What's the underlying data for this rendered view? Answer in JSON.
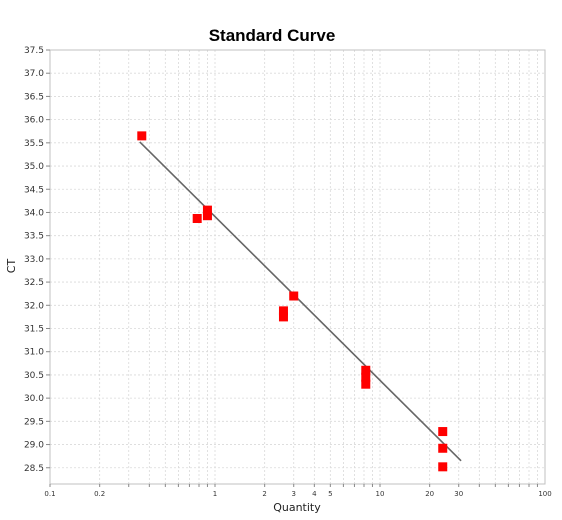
{
  "chart_data": {
    "type": "scatter",
    "title": "Standard Curve",
    "xlabel": "Quantity",
    "ylabel": "CT",
    "x_scale": "log",
    "xlim": [
      0.1,
      100
    ],
    "ylim": [
      28.15,
      37.5
    ],
    "x_ticks": [
      0.1,
      0.2,
      1,
      2,
      3,
      4,
      5,
      10,
      20,
      30,
      100
    ],
    "x_tick_labels": [
      "0.1",
      "0.2",
      "1",
      "2",
      "3",
      "4",
      "5",
      "10",
      "20",
      "30",
      "100"
    ],
    "y_ticks": [
      28.5,
      29.0,
      29.5,
      30.0,
      30.5,
      31.0,
      31.5,
      32.0,
      32.5,
      33.0,
      33.5,
      34.0,
      34.5,
      35.0,
      35.5,
      36.0,
      36.5,
      37.0,
      37.5
    ],
    "y_tick_labels": [
      "28.5",
      "29.0",
      "29.5",
      "30.0",
      "30.5",
      "31.0",
      "31.5",
      "32.0",
      "32.5",
      "33.0",
      "33.5",
      "34.0",
      "34.5",
      "35.0",
      "35.5",
      "36.0",
      "36.5",
      "37.0",
      "37.5"
    ],
    "grid": true,
    "series": [
      {
        "kind": "points",
        "color": "#ff0000",
        "points": [
          {
            "x": 0.36,
            "y": 35.65
          },
          {
            "x": 0.78,
            "y": 33.87
          },
          {
            "x": 0.9,
            "y": 34.05
          },
          {
            "x": 0.9,
            "y": 33.93
          },
          {
            "x": 2.6,
            "y": 31.88
          },
          {
            "x": 2.6,
            "y": 31.75
          },
          {
            "x": 3.0,
            "y": 32.2
          },
          {
            "x": 8.2,
            "y": 30.6
          },
          {
            "x": 8.2,
            "y": 30.45
          },
          {
            "x": 8.2,
            "y": 30.3
          },
          {
            "x": 24,
            "y": 29.28
          },
          {
            "x": 24,
            "y": 28.92
          },
          {
            "x": 24,
            "y": 28.52
          }
        ]
      },
      {
        "kind": "fit-line",
        "color": "#666666",
        "points": [
          {
            "x": 0.35,
            "y": 35.52
          },
          {
            "x": 31,
            "y": 28.65
          }
        ]
      }
    ]
  }
}
